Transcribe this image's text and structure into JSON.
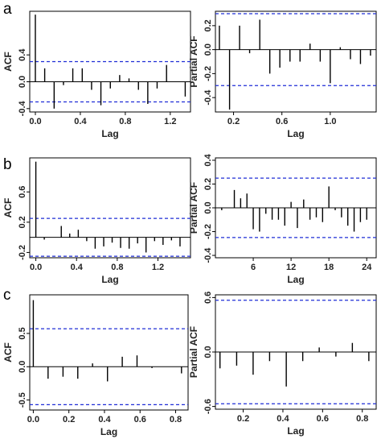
{
  "panel_labels": [
    "a",
    "b",
    "c"
  ],
  "chart_data": [
    {
      "panel": "a",
      "type": "bar",
      "xlabel": "Lag",
      "ylabel": "ACF",
      "xlim": [
        -0.05,
        1.38
      ],
      "ylim": [
        -0.45,
        1.05
      ],
      "xticks": [
        0.0,
        0.4,
        0.8,
        1.2
      ],
      "xtick_labels": [
        "0.0",
        "0.4",
        "0.8",
        "1.2"
      ],
      "yticks": [
        -0.4,
        0.0,
        0.4
      ],
      "ytick_labels": [
        "-0.4",
        "0.0",
        "0.4"
      ],
      "ci": 0.3,
      "x": [
        0.0,
        0.083,
        0.167,
        0.25,
        0.333,
        0.417,
        0.5,
        0.583,
        0.667,
        0.75,
        0.833,
        0.917,
        1.0,
        1.083,
        1.167,
        1.25,
        1.333
      ],
      "values": [
        1.0,
        0.2,
        -0.4,
        -0.05,
        0.2,
        0.2,
        -0.12,
        -0.35,
        -0.1,
        0.1,
        0.05,
        -0.12,
        -0.33,
        -0.1,
        0.25,
        0.0,
        -0.22
      ]
    },
    {
      "panel": "a",
      "type": "bar",
      "xlabel": "Lag",
      "ylabel": "Partial ACF",
      "xlim": [
        0.05,
        1.38
      ],
      "ylim": [
        -0.52,
        0.32
      ],
      "xticks": [
        0.2,
        0.6,
        1.0
      ],
      "xtick_labels": [
        "0.2",
        "0.6",
        "1.0"
      ],
      "yticks": [
        -0.4,
        -0.2,
        0.0,
        0.2
      ],
      "ytick_labels": [
        "-0.4",
        "-0.2",
        "0.0",
        "0.2"
      ],
      "ci": 0.3,
      "x": [
        0.083,
        0.167,
        0.25,
        0.333,
        0.417,
        0.5,
        0.583,
        0.667,
        0.75,
        0.833,
        0.917,
        1.0,
        1.083,
        1.167,
        1.25,
        1.333
      ],
      "values": [
        0.2,
        -0.5,
        0.2,
        -0.03,
        0.25,
        -0.2,
        -0.15,
        -0.1,
        -0.1,
        0.05,
        -0.1,
        -0.28,
        0.02,
        -0.08,
        -0.12,
        -0.05
      ]
    },
    {
      "panel": "b",
      "type": "bar",
      "xlabel": "Lag",
      "ylabel": "ACF",
      "xlim": [
        -0.06,
        1.52
      ],
      "ylim": [
        -0.27,
        1.05
      ],
      "xticks": [
        0.0,
        0.4,
        0.8,
        1.2
      ],
      "xtick_labels": [
        "0.0",
        "0.4",
        "0.8",
        "1.2"
      ],
      "yticks": [
        -0.2,
        0.2,
        0.6
      ],
      "ytick_labels": [
        "-0.2",
        "0.2",
        "0.6"
      ],
      "ci": 0.25,
      "x": [
        0.0,
        0.083,
        0.167,
        0.25,
        0.333,
        0.417,
        0.5,
        0.583,
        0.667,
        0.75,
        0.833,
        0.917,
        1.0,
        1.083,
        1.167,
        1.25,
        1.333,
        1.417
      ],
      "values": [
        1.0,
        -0.03,
        0.0,
        0.15,
        0.05,
        0.1,
        -0.05,
        -0.15,
        -0.12,
        -0.07,
        -0.14,
        -0.15,
        -0.08,
        -0.2,
        -0.05,
        -0.1,
        -0.04,
        -0.12
      ]
    },
    {
      "panel": "b",
      "type": "bar",
      "xlabel": "Lag",
      "ylabel": "Partial ACF",
      "xlim": [
        0.0,
        25.5
      ],
      "ylim": [
        -0.42,
        0.42
      ],
      "xticks": [
        6,
        12,
        18,
        24
      ],
      "xtick_labels": [
        "6",
        "12",
        "18",
        "24"
      ],
      "yticks": [
        -0.4,
        -0.2,
        0.0,
        0.2,
        0.4
      ],
      "ytick_labels": [
        "-0.4",
        "-0.2",
        "0.0",
        "0.2",
        "0.4"
      ],
      "ci": 0.25,
      "x": [
        1,
        2,
        3,
        4,
        5,
        6,
        7,
        8,
        9,
        10,
        11,
        12,
        13,
        14,
        15,
        16,
        17,
        18,
        19,
        20,
        21,
        22,
        23,
        24
      ],
      "values": [
        -0.02,
        0.0,
        0.15,
        0.08,
        0.12,
        -0.18,
        -0.2,
        -0.05,
        -0.1,
        -0.1,
        -0.15,
        0.05,
        -0.17,
        0.07,
        -0.1,
        -0.08,
        -0.12,
        0.18,
        -0.02,
        -0.08,
        -0.15,
        -0.2,
        -0.12,
        -0.1
      ]
    },
    {
      "panel": "c",
      "type": "bar",
      "xlabel": "Lag",
      "ylabel": "ACF",
      "xlim": [
        -0.02,
        0.87
      ],
      "ylim": [
        -0.65,
        1.08
      ],
      "xticks": [
        0.0,
        0.2,
        0.4,
        0.6,
        0.8
      ],
      "xtick_labels": [
        "0.0",
        "0.2",
        "0.4",
        "0.6",
        "0.8"
      ],
      "yticks": [
        -0.5,
        0.0,
        0.5
      ],
      "ytick_labels": [
        "-0.5",
        "0.0",
        "0.5"
      ],
      "ci": 0.57,
      "x": [
        0.0,
        0.083,
        0.167,
        0.25,
        0.333,
        0.417,
        0.5,
        0.583,
        0.667,
        0.75,
        0.833
      ],
      "values": [
        1.0,
        -0.18,
        -0.15,
        -0.18,
        0.05,
        -0.22,
        0.15,
        0.17,
        -0.02,
        0.0,
        -0.1
      ]
    },
    {
      "panel": "c",
      "type": "bar",
      "xlabel": "Lag",
      "ylabel": "Partial ACF",
      "xlim": [
        0.06,
        0.87
      ],
      "ylim": [
        -0.63,
        0.63
      ],
      "xticks": [
        0.2,
        0.4,
        0.6,
        0.8
      ],
      "xtick_labels": [
        "0.2",
        "0.4",
        "0.6",
        "0.8"
      ],
      "yticks": [
        -0.6,
        0.0,
        0.6
      ],
      "ytick_labels": [
        "-0.6",
        "0.0",
        "0.6"
      ],
      "ci": 0.57,
      "x": [
        0.083,
        0.167,
        0.25,
        0.333,
        0.417,
        0.5,
        0.583,
        0.667,
        0.75,
        0.833
      ],
      "values": [
        -0.18,
        -0.15,
        -0.25,
        -0.1,
        -0.38,
        -0.1,
        0.05,
        -0.05,
        0.1,
        -0.1
      ]
    }
  ]
}
